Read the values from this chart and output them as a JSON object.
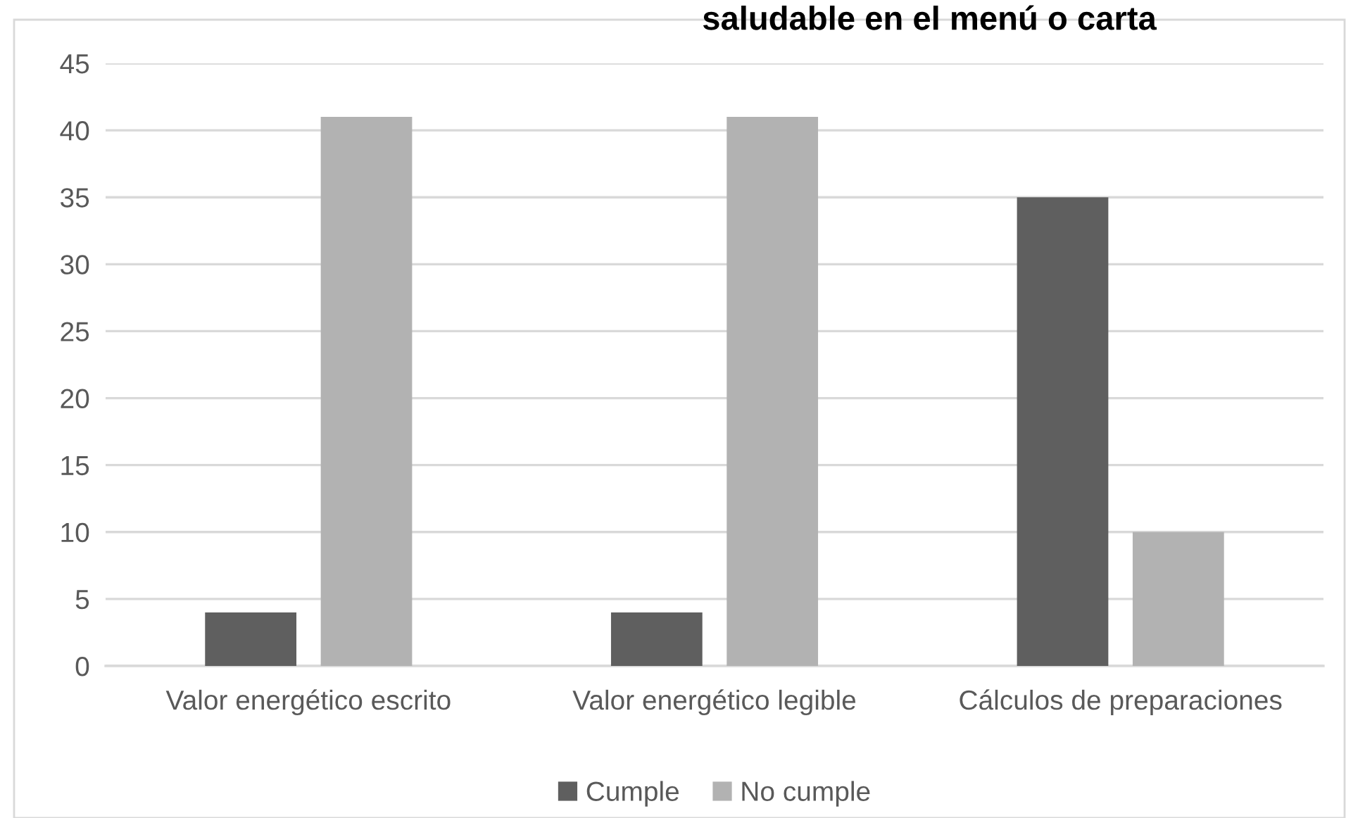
{
  "chart_data": {
    "type": "bar",
    "title": "saludable en el menú o carta",
    "categories": [
      "Valor energético escrito",
      "Valor energético legible",
      "Cálculos de preparaciones"
    ],
    "series": [
      {
        "name": "Cumple",
        "color": "#5f5f5f",
        "values": [
          4,
          4,
          35
        ]
      },
      {
        "name": "No cumple",
        "color": "#b2b2b2",
        "values": [
          41,
          41,
          10
        ]
      }
    ],
    "ylim": [
      0,
      45
    ],
    "yticks": [
      0,
      5,
      10,
      15,
      20,
      25,
      30,
      35,
      40,
      45
    ],
    "grid": "y",
    "legend": "bottom"
  }
}
